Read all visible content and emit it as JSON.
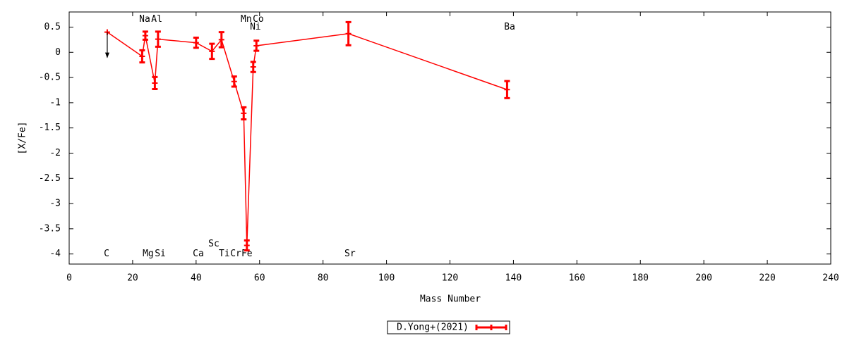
{
  "chart_data": {
    "type": "errorline",
    "xlabel": "Mass Number",
    "ylabel": "[X/Fe]",
    "xlim": [
      0,
      240
    ],
    "ylim": [
      -4.2,
      0.8
    ],
    "xticks": [
      0,
      20,
      40,
      60,
      80,
      100,
      120,
      140,
      160,
      180,
      200,
      220,
      240
    ],
    "yticks": [
      0.5,
      0,
      -0.5,
      -1,
      -1.5,
      -2,
      -2.5,
      -3,
      -3.5,
      -4
    ],
    "legend": "bottom",
    "series": [
      {
        "name": "D.Yong+(2021)",
        "color": "#ff0000",
        "x": [
          12,
          23,
          24,
          27,
          28,
          40,
          45,
          48,
          52,
          55,
          56,
          58,
          59,
          88,
          138
        ],
        "values": [
          0.4,
          -0.08,
          0.33,
          -0.61,
          0.26,
          0.19,
          0.02,
          0.25,
          -0.58,
          -1.21,
          -3.83,
          -0.29,
          0.13,
          0.37,
          -0.74
        ],
        "errors": [
          null,
          0.12,
          0.08,
          0.12,
          0.15,
          0.1,
          0.15,
          0.15,
          0.1,
          0.12,
          0.1,
          0.1,
          0.1,
          0.23,
          0.17
        ],
        "upper_limits": [
          true,
          false,
          false,
          false,
          false,
          false,
          false,
          false,
          false,
          false,
          false,
          false,
          false,
          false,
          false
        ]
      }
    ],
    "annotations": [
      {
        "text": "Na",
        "x": 23.8,
        "y": 0.65
      },
      {
        "text": "Al",
        "x": 27.6,
        "y": 0.65
      },
      {
        "text": "Mn",
        "x": 55.8,
        "y": 0.65
      },
      {
        "text": "Co",
        "x": 59.6,
        "y": 0.65
      },
      {
        "text": "Ni",
        "x": 58.7,
        "y": 0.5
      },
      {
        "text": "Ba",
        "x": 138.8,
        "y": 0.5
      },
      {
        "text": "C",
        "x": 11.8,
        "y": -4
      },
      {
        "text": "Mg",
        "x": 24.9,
        "y": -4
      },
      {
        "text": "Si",
        "x": 28.7,
        "y": -4
      },
      {
        "text": "Ca",
        "x": 40.7,
        "y": -4
      },
      {
        "text": "Sc",
        "x": 45.6,
        "y": -3.8
      },
      {
        "text": "Ti",
        "x": 48.9,
        "y": -4
      },
      {
        "text": "Cr",
        "x": 52.5,
        "y": -4
      },
      {
        "text": "Fe",
        "x": 56,
        "y": -4
      },
      {
        "text": "Sr",
        "x": 88.5,
        "y": -4
      }
    ]
  }
}
